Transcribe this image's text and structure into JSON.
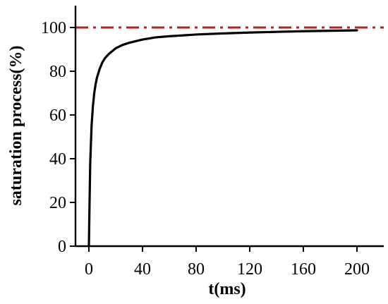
{
  "chart_data": {
    "type": "line",
    "xlabel": "t(ms)",
    "ylabel": "saturation process(%)",
    "xlim": [
      -10,
      220
    ],
    "ylim": [
      0,
      110
    ],
    "xticks": [
      0,
      40,
      80,
      120,
      160,
      200
    ],
    "yticks": [
      0,
      20,
      40,
      60,
      80,
      100
    ],
    "xtick_labels": [
      "0",
      "40",
      "80",
      "120",
      "160",
      "200"
    ],
    "ytick_labels": [
      "0",
      "20",
      "40",
      "60",
      "80",
      "100"
    ],
    "grid": false,
    "reference_line": {
      "y": 100,
      "color": "#b22222",
      "style": "dash-dot"
    },
    "series": [
      {
        "color": "#000000",
        "x": [
          0,
          0.5,
          1,
          2,
          3,
          4,
          5,
          6,
          8,
          10,
          12,
          15,
          20,
          25,
          30,
          40,
          50,
          60,
          80,
          100,
          120,
          140,
          160,
          180,
          200
        ],
        "y": [
          0,
          20,
          38,
          55,
          64,
          70,
          74,
          77,
          81,
          84,
          86,
          88,
          90.5,
          92,
          93,
          94.5,
          95.5,
          96,
          96.8,
          97.3,
          97.7,
          98,
          98.3,
          98.5,
          98.7
        ]
      }
    ]
  }
}
